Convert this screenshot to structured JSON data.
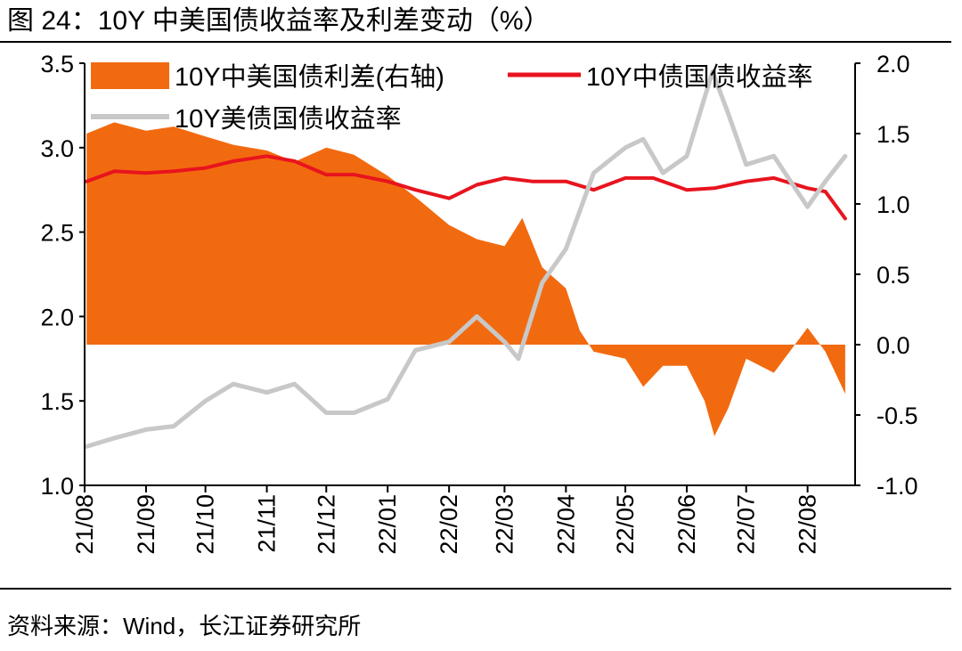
{
  "header": {
    "title": "图 24：10Y 中美国债收益率及利差变动（%）"
  },
  "footer": {
    "source": "资料来源：Wind，长江证券研究所"
  },
  "chart_data": {
    "type": "area",
    "title": "",
    "x_tick_labels": [
      "21/08",
      "21/09",
      "21/10",
      "21/11",
      "21/12",
      "22/01",
      "22/02",
      "22/03",
      "22/04",
      "22/05",
      "22/06",
      "22/07",
      "22/08"
    ],
    "y_left": {
      "ylim": [
        1.0,
        3.5
      ],
      "ticks": [
        "1.0",
        "1.5",
        "2.0",
        "2.5",
        "3.0",
        "3.5"
      ]
    },
    "y_right": {
      "ylim": [
        -1.0,
        2.0
      ],
      "ticks": [
        "-1.0",
        "-0.5",
        "0.0",
        "0.5",
        "1.0",
        "1.5",
        "2.0"
      ]
    },
    "grid": false,
    "legend_placement": "top",
    "series": [
      {
        "name": "10Y中美国债利差(右轴)",
        "type": "area",
        "axis": "right",
        "color": "#f26a10",
        "x": [
          "2021-08-02",
          "2021-08-16",
          "2021-09-01",
          "2021-09-15",
          "2021-10-01",
          "2021-10-15",
          "2021-11-01",
          "2021-11-15",
          "2021-12-01",
          "2021-12-15",
          "2022-01-01",
          "2022-01-15",
          "2022-02-01",
          "2022-02-15",
          "2022-03-01",
          "2022-03-10",
          "2022-03-20",
          "2022-04-01",
          "2022-04-08",
          "2022-04-15",
          "2022-05-01",
          "2022-05-10",
          "2022-05-20",
          "2022-06-01",
          "2022-06-10",
          "2022-06-15",
          "2022-06-22",
          "2022-07-01",
          "2022-07-15",
          "2022-08-01",
          "2022-08-10",
          "2022-08-20"
        ],
        "y": [
          1.5,
          1.58,
          1.52,
          1.55,
          1.48,
          1.42,
          1.38,
          1.3,
          1.4,
          1.35,
          1.2,
          1.05,
          0.85,
          0.75,
          0.7,
          0.9,
          0.55,
          0.4,
          0.1,
          -0.05,
          -0.1,
          -0.3,
          -0.15,
          -0.15,
          -0.4,
          -0.65,
          -0.45,
          -0.1,
          -0.2,
          0.12,
          -0.05,
          -0.35
        ]
      },
      {
        "name": "10Y中债国债收益率",
        "type": "line",
        "axis": "left",
        "color": "#e8141e",
        "x": [
          "2021-08-02",
          "2021-08-16",
          "2021-09-01",
          "2021-09-15",
          "2021-10-01",
          "2021-10-15",
          "2021-11-01",
          "2021-11-15",
          "2021-12-01",
          "2021-12-15",
          "2022-01-01",
          "2022-01-15",
          "2022-02-01",
          "2022-02-15",
          "2022-03-01",
          "2022-03-15",
          "2022-04-01",
          "2022-04-15",
          "2022-05-01",
          "2022-05-15",
          "2022-06-01",
          "2022-06-15",
          "2022-07-01",
          "2022-07-15",
          "2022-08-01",
          "2022-08-10",
          "2022-08-20"
        ],
        "y": [
          2.8,
          2.86,
          2.85,
          2.86,
          2.88,
          2.92,
          2.95,
          2.92,
          2.84,
          2.84,
          2.8,
          2.75,
          2.7,
          2.78,
          2.82,
          2.8,
          2.8,
          2.75,
          2.82,
          2.82,
          2.75,
          2.76,
          2.8,
          2.82,
          2.76,
          2.74,
          2.58
        ]
      },
      {
        "name": "10Y美债国债收益率",
        "type": "line",
        "axis": "left",
        "color": "#c8c8c8",
        "x": [
          "2021-08-02",
          "2021-08-16",
          "2021-09-01",
          "2021-09-15",
          "2021-10-01",
          "2021-10-15",
          "2021-11-01",
          "2021-11-15",
          "2021-12-01",
          "2021-12-15",
          "2022-01-01",
          "2022-01-15",
          "2022-02-01",
          "2022-02-15",
          "2022-03-01",
          "2022-03-08",
          "2022-03-20",
          "2022-04-01",
          "2022-04-15",
          "2022-05-01",
          "2022-05-10",
          "2022-05-20",
          "2022-06-01",
          "2022-06-14",
          "2022-06-22",
          "2022-07-01",
          "2022-07-15",
          "2022-08-01",
          "2022-08-10",
          "2022-08-20"
        ],
        "y": [
          1.23,
          1.28,
          1.33,
          1.35,
          1.5,
          1.6,
          1.55,
          1.6,
          1.43,
          1.43,
          1.51,
          1.8,
          1.85,
          2.0,
          1.85,
          1.75,
          2.2,
          2.4,
          2.85,
          3.0,
          3.05,
          2.85,
          2.95,
          3.45,
          3.2,
          2.9,
          2.95,
          2.65,
          2.8,
          2.95
        ]
      }
    ]
  }
}
